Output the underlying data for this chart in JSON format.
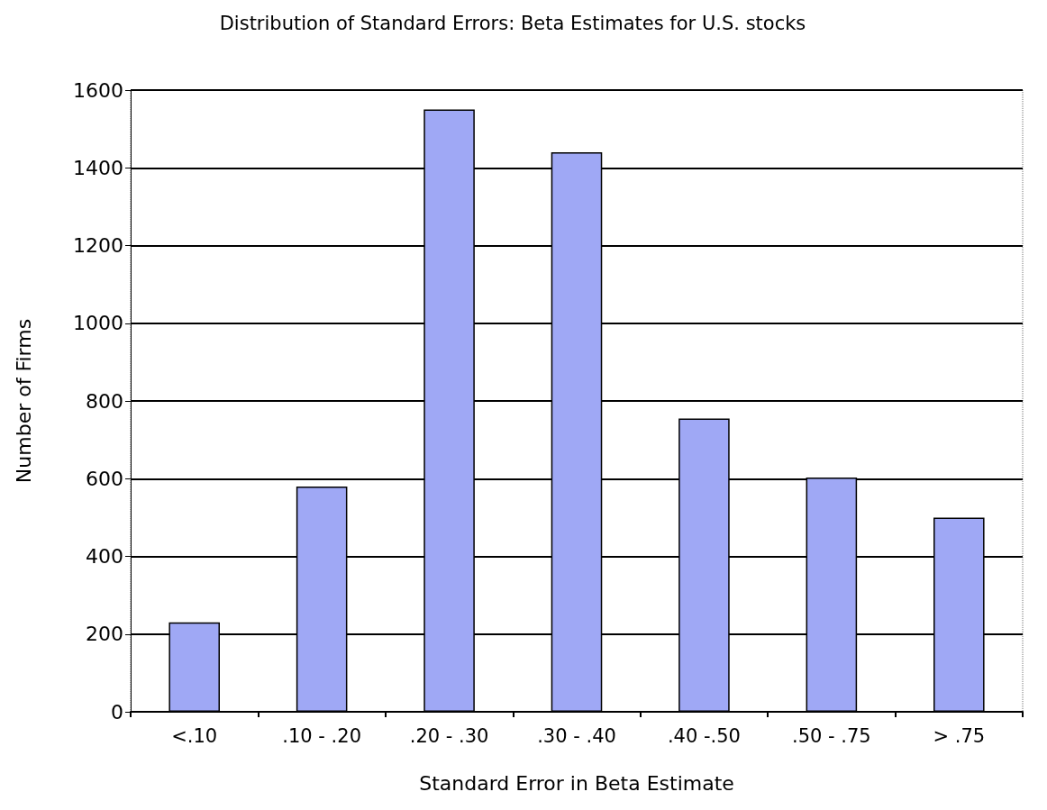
{
  "chart_data": {
    "type": "bar",
    "title": "Distribution of Standard Errors: Beta Estimates for U.S. stocks",
    "xlabel": "Standard Error in Beta Estimate",
    "ylabel": "Number of Firms",
    "categories": [
      "<.10",
      ".10 - .20",
      ".20 - .30",
      ".30 - .40",
      ".40 -.50",
      ".50 - .75",
      "> .75"
    ],
    "values": [
      230,
      580,
      1550,
      1440,
      755,
      603,
      500
    ],
    "color": "#9fa8f5",
    "ylim": [
      0,
      1600
    ],
    "yticks": [
      0,
      200,
      400,
      600,
      800,
      1000,
      1200,
      1400,
      1600
    ],
    "grid": "y"
  }
}
